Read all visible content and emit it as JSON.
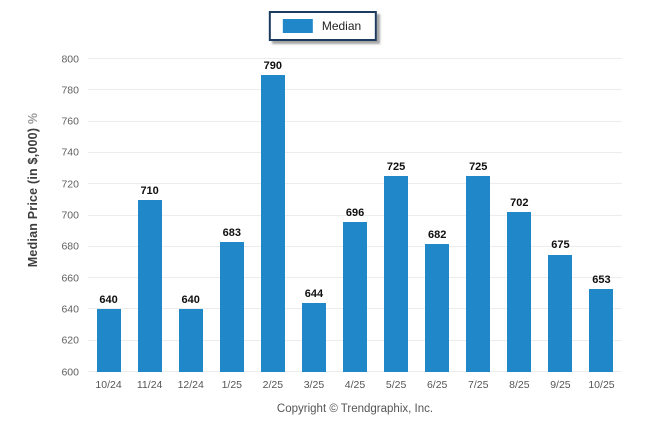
{
  "legend": {
    "label": "Median",
    "swatch_color": "#2087c9"
  },
  "y_axis": {
    "label_main": "Median Price (in $,000)",
    "label_suffix": " %"
  },
  "footer": {
    "copyright": "Copyright © Trendgraphix, Inc."
  },
  "chart_data": {
    "type": "bar",
    "title": "",
    "xlabel": "",
    "ylabel": "Median Price (in $,000) %",
    "series_name": "Median",
    "categories": [
      "10/24",
      "11/24",
      "12/24",
      "1/25",
      "2/25",
      "3/25",
      "4/25",
      "5/25",
      "6/25",
      "7/25",
      "8/25",
      "9/25",
      "10/25"
    ],
    "values": [
      640,
      710,
      640,
      683,
      790,
      644,
      696,
      725,
      682,
      725,
      702,
      675,
      653
    ],
    "ylim": [
      600,
      800
    ],
    "yticks": [
      600,
      620,
      640,
      660,
      680,
      700,
      720,
      740,
      760,
      780,
      800
    ],
    "bar_color": "#2087c9",
    "grid": "horizontal",
    "gridline_color": "#ececec",
    "legend_position": "top-center",
    "value_labels": "above-bars"
  }
}
